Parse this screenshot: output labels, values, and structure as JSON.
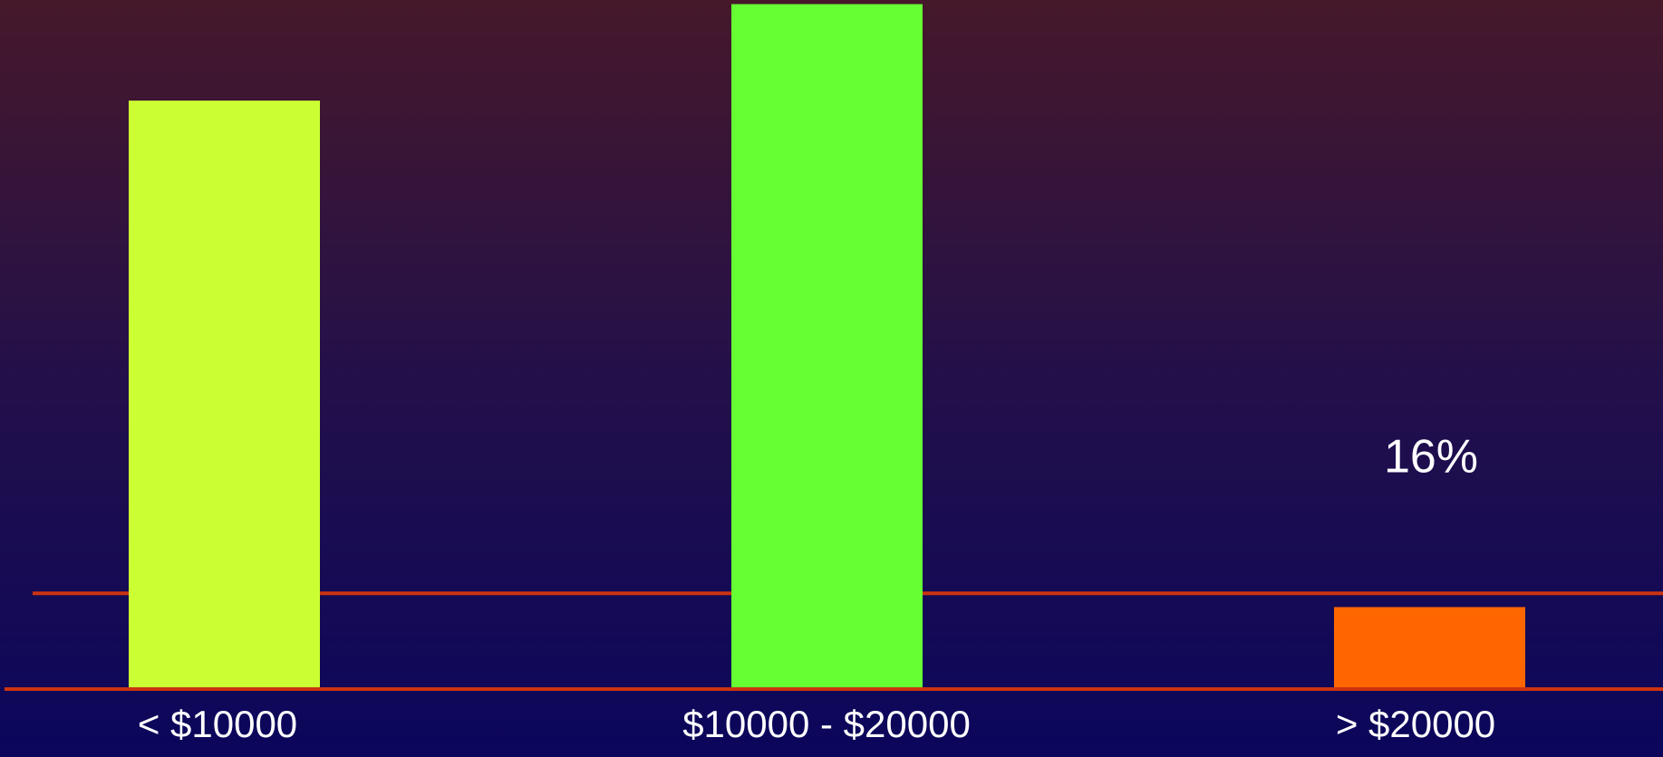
{
  "chart_data": {
    "type": "bar",
    "categories": [
      "< $10000",
      "$10000 - $20000",
      "> $20000"
    ],
    "values": [
      85.4,
      99.4,
      11.9
    ],
    "colors": [
      "#ccff33",
      "#66ff33",
      "#ff6600"
    ],
    "ylim": [
      0,
      100
    ],
    "reference_line": 13.9,
    "annotation": "16%"
  }
}
